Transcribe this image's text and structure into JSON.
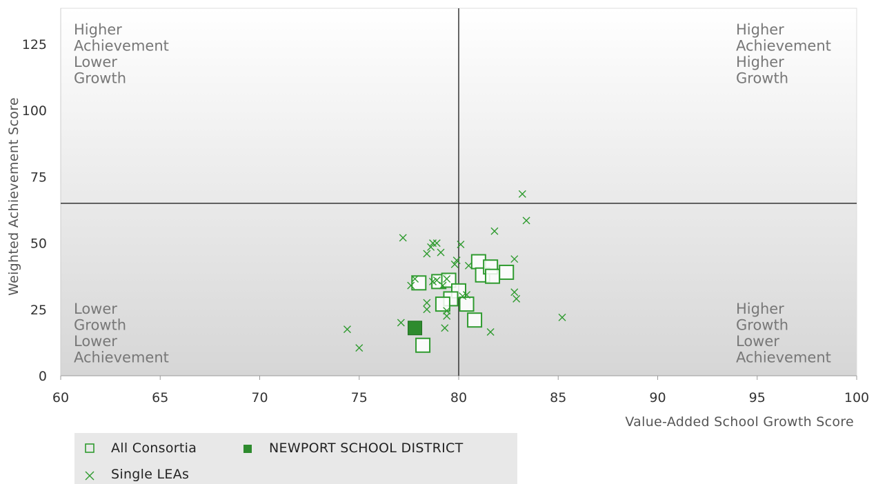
{
  "chart_data": {
    "type": "scatter",
    "xlabel": "Value-Added School Growth Score",
    "ylabel": "Weighted Achievement Score",
    "xlim": [
      60,
      100
    ],
    "ylim": [
      0,
      140
    ],
    "xticks": [
      60,
      65,
      70,
      75,
      80,
      85,
      90,
      95,
      100
    ],
    "yticks": [
      0,
      25,
      50,
      75,
      100,
      125
    ],
    "reference_lines": {
      "x": 80,
      "y": 65
    },
    "grid": false,
    "legend_position": "bottom-left",
    "quadrant_labels": {
      "top_left": [
        "Higher",
        "Achievement",
        "Lower",
        "Growth"
      ],
      "top_right": [
        "Higher",
        "Achievement",
        "Higher",
        "Growth"
      ],
      "bottom_left": [
        "Lower",
        "Growth",
        "Lower",
        "Achievement"
      ],
      "bottom_right": [
        "Higher",
        "Growth",
        "Lower",
        "Achievement"
      ]
    },
    "colors": {
      "series": "#2e9a2e",
      "highlight": "#2e8b2e",
      "plot_top": "#ffffff",
      "plot_bottom": "#d6d6d6",
      "reference_line": "#333333"
    },
    "series": [
      {
        "name": "All Consortia",
        "marker": "open-square",
        "points": [
          [
            78.0,
            35
          ],
          [
            79.0,
            35.5
          ],
          [
            79.5,
            36
          ],
          [
            80.0,
            32
          ],
          [
            79.6,
            29
          ],
          [
            79.2,
            27
          ],
          [
            80.4,
            27
          ],
          [
            81.0,
            43
          ],
          [
            81.2,
            38
          ],
          [
            81.6,
            41
          ],
          [
            81.7,
            37.5
          ],
          [
            82.4,
            39
          ],
          [
            80.8,
            21
          ],
          [
            78.2,
            11.5
          ]
        ]
      },
      {
        "name": "NEWPORT SCHOOL DISTRICT",
        "marker": "filled-square",
        "points": [
          [
            77.8,
            18
          ]
        ]
      },
      {
        "name": "Single LEAs",
        "marker": "x",
        "points": [
          [
            83.2,
            68.5
          ],
          [
            83.4,
            58.5
          ],
          [
            81.8,
            54.5
          ],
          [
            77.2,
            52
          ],
          [
            78.7,
            50
          ],
          [
            78.9,
            50
          ],
          [
            80.1,
            49.5
          ],
          [
            78.6,
            48.5
          ],
          [
            79.1,
            46.5
          ],
          [
            78.4,
            46
          ],
          [
            79.9,
            43.5
          ],
          [
            82.8,
            44
          ],
          [
            79.8,
            42
          ],
          [
            80.5,
            41.5
          ],
          [
            77.8,
            36.5
          ],
          [
            78.7,
            35.5
          ],
          [
            78.9,
            36
          ],
          [
            77.6,
            34
          ],
          [
            79.2,
            34
          ],
          [
            79.4,
            36.5
          ],
          [
            80.2,
            30
          ],
          [
            80.4,
            30.5
          ],
          [
            82.8,
            31.5
          ],
          [
            82.9,
            29
          ],
          [
            78.4,
            27.5
          ],
          [
            78.4,
            25
          ],
          [
            79.4,
            22.5
          ],
          [
            79.4,
            24.5
          ],
          [
            85.2,
            22
          ],
          [
            77.1,
            20
          ],
          [
            79.3,
            18
          ],
          [
            81.6,
            16.5
          ],
          [
            74.4,
            17.5
          ],
          [
            75.0,
            10.5
          ]
        ]
      }
    ]
  }
}
